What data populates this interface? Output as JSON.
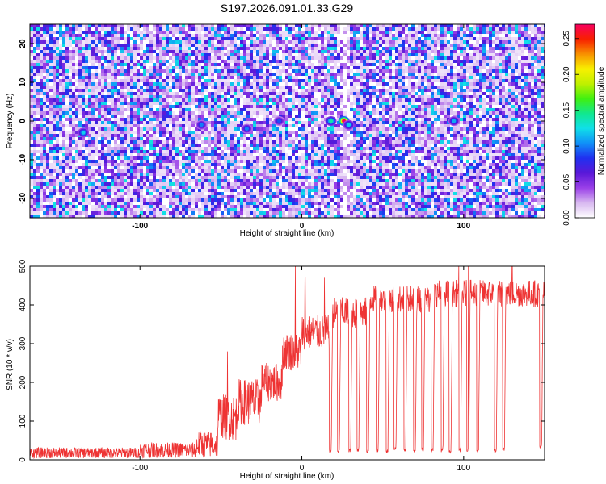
{
  "title": "S197.2026.091.01.33.G29",
  "chart_data": [
    {
      "type": "heatmap",
      "title": "S197.2026.091.01.33.G29",
      "xlabel": "Height of straight line (km)",
      "ylabel": "Frequency (Hz)",
      "xlim": [
        -168,
        150
      ],
      "ylim": [
        -25,
        25
      ],
      "xticks": [
        "-100",
        "0",
        "100"
      ],
      "xtick_values": [
        -100,
        0,
        100
      ],
      "yticks": [
        "-20",
        "-10",
        "0",
        "10",
        "20"
      ],
      "ytick_values": [
        -20,
        -10,
        0,
        10,
        20
      ],
      "colorbar": {
        "label": "Normalized spectral amplitude",
        "range": [
          0,
          0.27
        ],
        "ticks": [
          "0.00",
          "0.05",
          "0.10",
          "0.15",
          "0.20",
          "0.25"
        ],
        "tick_values": [
          0,
          0.05,
          0.1,
          0.15,
          0.2,
          0.25
        ],
        "colors": [
          "#ffffff",
          "#d8b8f0",
          "#9a40e8",
          "#5a18d8",
          "#2030f0",
          "#1090f8",
          "#10e0e8",
          "#10e890",
          "#40f010",
          "#c0f000",
          "#f8f000",
          "#f89000",
          "#f82000",
          "#f80060"
        ]
      },
      "peaks": [
        {
          "x": 26,
          "y": 0,
          "value": 0.27
        },
        {
          "x": 18,
          "y": 0,
          "value": 0.14
        },
        {
          "x": 29,
          "y": -1,
          "value": 0.12
        },
        {
          "x": -135,
          "y": -3,
          "value": 0.12
        },
        {
          "x": 94,
          "y": 0,
          "value": 0.11
        },
        {
          "x": -62,
          "y": -1,
          "value": 0.1
        },
        {
          "x": -34,
          "y": -2,
          "value": 0.1
        },
        {
          "x": -14,
          "y": 0,
          "value": 0.09
        }
      ],
      "gaps_x": [
        26
      ],
      "noise_level": 0.05
    },
    {
      "type": "line",
      "xlabel": "Height of straight line (km)",
      "ylabel": "SNR (10 * v/v)",
      "xlim": [
        -168,
        150
      ],
      "ylim": [
        0,
        500
      ],
      "xticks": [
        "-100",
        "0",
        "100"
      ],
      "xtick_values": [
        -100,
        0,
        100
      ],
      "yticks": [
        "0",
        "100",
        "200",
        "300",
        "400",
        "500"
      ],
      "ytick_values": [
        0,
        100,
        200,
        300,
        400,
        500
      ],
      "color": "#ee3333",
      "segments": [
        {
          "x_start": -168,
          "x_end": -100,
          "level": 18,
          "noise": 14
        },
        {
          "x_start": -100,
          "x_end": -65,
          "level": 25,
          "noise": 20
        },
        {
          "x_start": -65,
          "x_end": -55,
          "level": 40,
          "noise": 35
        },
        {
          "x_start": -52,
          "x_end": -40,
          "level": 110,
          "noise": 60
        },
        {
          "x_start": -40,
          "x_end": -25,
          "level": 150,
          "noise": 60
        },
        {
          "x_start": -25,
          "x_end": -12,
          "level": 200,
          "noise": 50
        },
        {
          "x_start": -12,
          "x_end": 0,
          "level": 280,
          "noise": 50
        },
        {
          "x_start": 0,
          "x_end": 18,
          "level": 330,
          "noise": 45
        },
        {
          "x_start": 18,
          "x_end": 40,
          "level": 380,
          "noise": 40
        },
        {
          "x_start": 40,
          "x_end": 80,
          "level": 415,
          "noise": 35
        },
        {
          "x_start": 80,
          "x_end": 150,
          "level": 430,
          "noise": 35
        }
      ],
      "dropouts": [
        {
          "x": 17,
          "low": 18
        },
        {
          "x": 22,
          "low": 18
        },
        {
          "x": 29,
          "low": 20
        },
        {
          "x": 34,
          "low": 20
        },
        {
          "x": 40,
          "low": 18
        },
        {
          "x": 46,
          "low": 18
        },
        {
          "x": 52,
          "low": 18
        },
        {
          "x": 57,
          "low": 22
        },
        {
          "x": 63,
          "low": 20
        },
        {
          "x": 69,
          "low": 18
        },
        {
          "x": 74,
          "low": 22
        },
        {
          "x": 80,
          "low": 20
        },
        {
          "x": 86,
          "low": 20
        },
        {
          "x": 91,
          "low": 18
        },
        {
          "x": 97,
          "low": 20
        },
        {
          "x": 102,
          "low": 22
        },
        {
          "x": 108,
          "low": 20
        },
        {
          "x": 119,
          "low": 20
        },
        {
          "x": 124,
          "low": 22
        },
        {
          "x": 147,
          "low": 30
        }
      ],
      "spikes": [
        {
          "x": -4,
          "value": 500
        },
        {
          "x": 2,
          "value": 470
        },
        {
          "x": 14,
          "value": 470
        },
        {
          "x": 97,
          "value": 500
        },
        {
          "x": 103,
          "value": 500
        },
        {
          "x": 130,
          "value": 500
        },
        {
          "x": -46,
          "value": 280
        }
      ]
    }
  ]
}
